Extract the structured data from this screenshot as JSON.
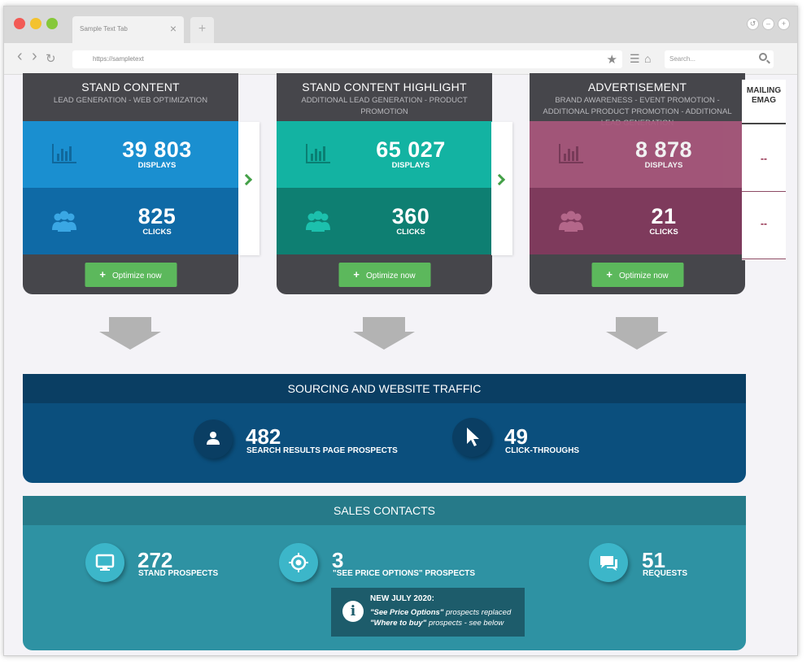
{
  "browser": {
    "tab_title": "Sample Text Tab",
    "tab_close": "×",
    "new_tab": "+",
    "url": "https://sampletext",
    "search_placeholder": "Search...",
    "back": "‹",
    "forward": "›",
    "reload": "↻"
  },
  "cards": [
    {
      "title": "STAND CONTENT",
      "subtitle": "LEAD GENERATION - WEB OPTIMIZATION",
      "displays_value": "39 803",
      "displays_label": "DISPLAYS",
      "clicks_value": "825",
      "clicks_label": "CLICKS",
      "button_label": "Optimize now",
      "colors": {
        "top": "#1a8fd0",
        "bottom": "#0f6aa6",
        "icon_top": "#10689c",
        "icon_bottom": "#3aa7e4"
      }
    },
    {
      "title": "STAND CONTENT HIGHLIGHT",
      "subtitle": "ADDITIONAL LEAD GENERATION - PRODUCT PROMOTION",
      "displays_value": "65 027",
      "displays_label": "DISPLAYS",
      "clicks_value": "360",
      "clicks_label": "CLICKS",
      "button_label": "Optimize now",
      "colors": {
        "top": "#13b3a2",
        "bottom": "#0e7f72",
        "icon_top": "#0a7f73",
        "icon_bottom": "#1cc0ad"
      }
    },
    {
      "title": "ADVERTISEMENT",
      "subtitle": "BRAND AWARENESS - EVENT PROMOTION - ADDITIONAL PRODUCT PROMOTION - ADDITIONAL LEAD GENERATION",
      "displays_value": "8 878",
      "displays_label": "DISPLAYS",
      "clicks_value": "21",
      "clicks_label": "CLICKS",
      "button_label": "Optimize now",
      "colors": {
        "top": "#a8577c",
        "bottom": "#7e3a5c",
        "icon_top": "#7b3a59",
        "icon_bottom": "#b4678a"
      }
    }
  ],
  "emag": {
    "title_line1": "MAILING",
    "title_line2": "EMAG",
    "displays_value": "--",
    "clicks_value": "--"
  },
  "traffic": {
    "title": "SOURCING AND WEBSITE TRAFFIC",
    "prospects_value": "482",
    "prospects_label": "SEARCH RESULTS PAGE PROSPECTS",
    "clickthroughs_value": "49",
    "clickthroughs_label": "CLICK-THROUGHS",
    "circle_color": "#0a3e63"
  },
  "sales": {
    "title": "SALES CONTACTS",
    "stand_value": "272",
    "stand_label": "STAND PROSPECTS",
    "price_value": "3",
    "price_label": "\"SEE PRICE OPTIONS\" PROSPECTS",
    "requests_value": "51",
    "requests_label": "REQUESTS",
    "circle_color": "#3cb6c9",
    "info": {
      "icon": "i",
      "title": "NEW JULY 2020:",
      "line1_bold": "\"See Price Options\"",
      "line1_rest": " prospects replaced",
      "line2_bold": "\"Where to buy\"",
      "line2_rest": " prospects - see below"
    }
  },
  "colors": {
    "card_dark": "#46464b",
    "button_green": "#5cb85c",
    "arrow_grey": "#b3b3b3",
    "traffic_blue": "#0b4f7d",
    "sales_teal": "#2e92a3"
  }
}
